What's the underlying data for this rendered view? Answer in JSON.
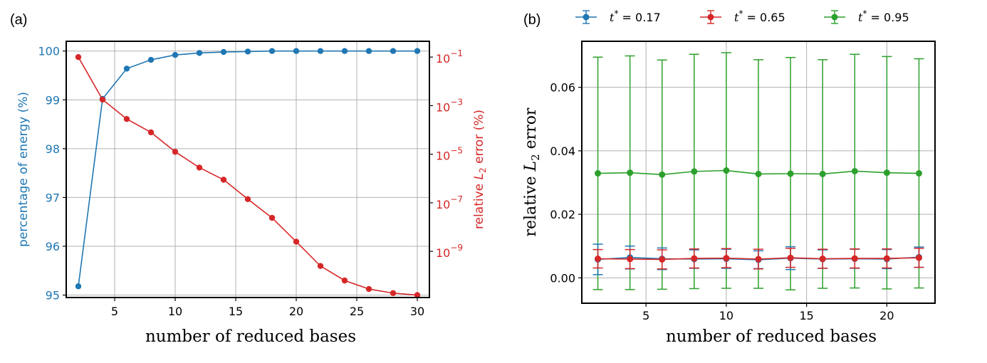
{
  "panels": {
    "a_label": "(a)",
    "b_label": "(b)"
  },
  "colors": {
    "blue": "#1f77b4",
    "red": "#d62728",
    "green": "#2ca02c",
    "grid": "#b0b0b0"
  },
  "chart_data": [
    {
      "panel": "(a)",
      "type": "line",
      "title": "",
      "xlabel": "number of reduced bases",
      "xlim": [
        1,
        31
      ],
      "xticks": [
        5,
        10,
        15,
        20,
        25,
        30
      ],
      "grid": true,
      "left_axis": {
        "label": "percentage of energy (%)",
        "ylim": [
          94.95,
          100.2
        ],
        "ticks": [
          95,
          96,
          97,
          98,
          99,
          100
        ],
        "color": "#1f77b4"
      },
      "right_axis": {
        "label_prefix": "relative ",
        "label_math": "L",
        "label_sub": "2",
        "label_suffix": " error (%)",
        "scale": "log",
        "ylim_log10": [
          -10.9,
          -0.35
        ],
        "ticks": [
          {
            "base": "10",
            "exp": "−1",
            "log": -1
          },
          {
            "base": "10",
            "exp": "−3",
            "log": -3
          },
          {
            "base": "10",
            "exp": "−5",
            "log": -5
          },
          {
            "base": "10",
            "exp": "−7",
            "log": -7
          },
          {
            "base": "10",
            "exp": "−9",
            "log": -9
          }
        ],
        "color": "#d62728"
      },
      "series": [
        {
          "name": "percentage of energy",
          "axis": "left",
          "x": [
            2,
            4,
            6,
            8,
            10,
            12,
            14,
            16,
            18,
            20,
            22,
            24,
            26,
            28,
            30
          ],
          "y": [
            95.18,
            99.02,
            99.64,
            99.82,
            99.92,
            99.96,
            99.98,
            99.99,
            100.0,
            100.0,
            100.0,
            100.0,
            100.0,
            100.0,
            100.0
          ]
        },
        {
          "name": "relative L2 error",
          "axis": "right",
          "x": [
            2,
            4,
            6,
            8,
            10,
            12,
            14,
            16,
            18,
            20,
            22,
            24,
            26,
            28,
            30
          ],
          "y_log10": [
            -1.0,
            -2.75,
            -3.55,
            -4.1,
            -4.9,
            -5.55,
            -6.05,
            -6.85,
            -7.62,
            -8.6,
            -9.6,
            -10.2,
            -10.55,
            -10.72,
            -10.8
          ]
        }
      ]
    },
    {
      "panel": "(b)",
      "type": "line",
      "title": "",
      "xlabel": "number of reduced bases",
      "ylabel_prefix": "relative ",
      "ylabel_math": "L",
      "ylabel_sub": "2",
      "ylabel_suffix": " error",
      "xlim": [
        1.0,
        23.0
      ],
      "ylim": [
        -0.008,
        0.0745
      ],
      "xticks": [
        5,
        10,
        15,
        20
      ],
      "yticks": [
        0.0,
        0.02,
        0.04,
        0.06
      ],
      "ytick_labels": [
        "0.00",
        "0.02",
        "0.04",
        "0.06"
      ],
      "grid": true,
      "legend_position": "top",
      "series": [
        {
          "name_math": "t",
          "name_sup": "*",
          "name_value": " = 0.17",
          "color": "#1f77b4",
          "x": [
            2,
            4,
            6,
            8,
            10,
            12,
            14,
            16,
            18,
            20,
            22
          ],
          "y": [
            0.0058,
            0.0064,
            0.006,
            0.0059,
            0.006,
            0.0057,
            0.0062,
            0.0059,
            0.006,
            0.0059,
            0.0065
          ],
          "err": [
            0.0048,
            0.0036,
            0.0034,
            0.0029,
            0.003,
            0.0028,
            0.0036,
            0.0029,
            0.003,
            0.003,
            0.0032
          ]
        },
        {
          "name_math": "t",
          "name_sup": "*",
          "name_value": " = 0.65",
          "color": "#d62728",
          "x": [
            2,
            4,
            6,
            8,
            10,
            12,
            14,
            16,
            18,
            20,
            22
          ],
          "y": [
            0.006,
            0.0059,
            0.0058,
            0.0061,
            0.0062,
            0.0059,
            0.0063,
            0.006,
            0.0061,
            0.0061,
            0.0063
          ],
          "err": [
            0.0029,
            0.003,
            0.003,
            0.003,
            0.003,
            0.0031,
            0.003,
            0.003,
            0.003,
            0.003,
            0.003
          ]
        },
        {
          "name_math": "t",
          "name_sup": "*",
          "name_value": " = 0.95",
          "color": "#2ca02c",
          "x": [
            2,
            4,
            6,
            8,
            10,
            12,
            14,
            16,
            18,
            20,
            22
          ],
          "y": [
            0.0329,
            0.0331,
            0.0325,
            0.0335,
            0.0338,
            0.0327,
            0.0328,
            0.0327,
            0.0336,
            0.0331,
            0.0329
          ],
          "err": [
            0.0366,
            0.0368,
            0.0361,
            0.0369,
            0.0371,
            0.036,
            0.0366,
            0.036,
            0.0368,
            0.0366,
            0.0361
          ]
        }
      ]
    }
  ]
}
